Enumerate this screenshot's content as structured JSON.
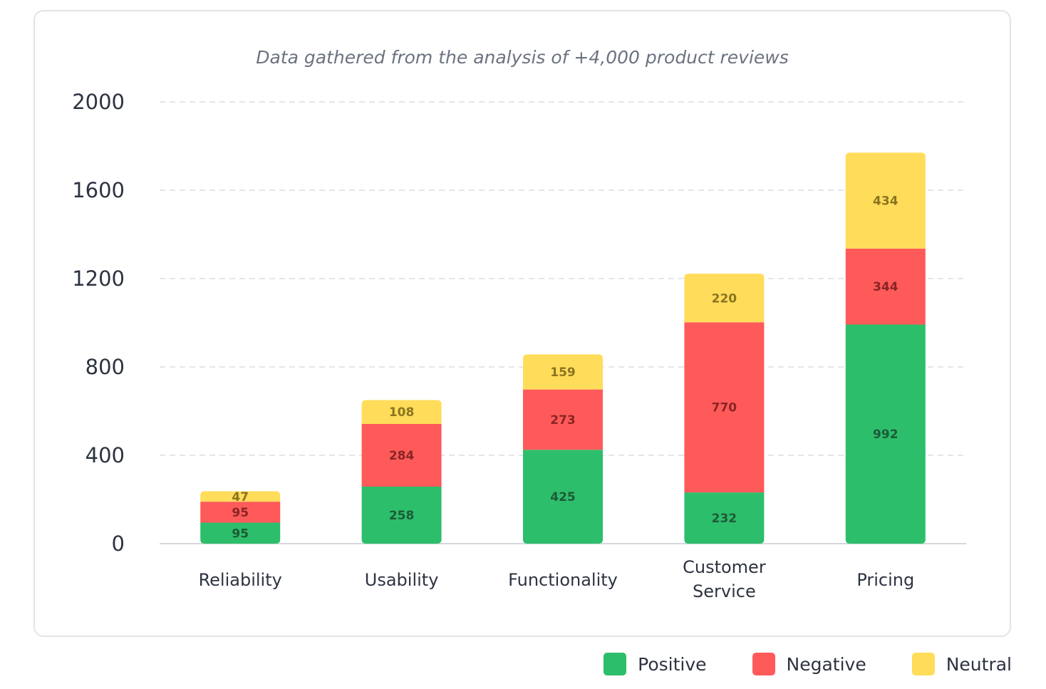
{
  "chart_data": {
    "type": "bar",
    "stacked": true,
    "subtitle": "Data gathered from the analysis of +4,000 product reviews",
    "categories": [
      "Reliability",
      "Usability",
      "Functionality",
      "Customer Service",
      "Pricing"
    ],
    "category_lines": [
      [
        "Reliability"
      ],
      [
        "Usability"
      ],
      [
        "Functionality"
      ],
      [
        "Customer",
        "Service"
      ],
      [
        "Pricing"
      ]
    ],
    "series": [
      {
        "name": "Positive",
        "color": "#2dbe6c",
        "label_color": "#1d5a36",
        "values": [
          95,
          258,
          425,
          232,
          992
        ]
      },
      {
        "name": "Negative",
        "color": "#ff5a5a",
        "label_color": "#8a2525",
        "values": [
          95,
          284,
          273,
          770,
          344
        ]
      },
      {
        "name": "Neutral",
        "color": "#ffdc5a",
        "label_color": "#8a7420",
        "values": [
          47,
          108,
          159,
          220,
          434
        ]
      }
    ],
    "y_ticks": [
      "0",
      "400",
      "800",
      "1200",
      "1600",
      "2000"
    ],
    "ylim": [
      0,
      2000
    ],
    "grid": true,
    "legend_position": "bottom-right"
  }
}
